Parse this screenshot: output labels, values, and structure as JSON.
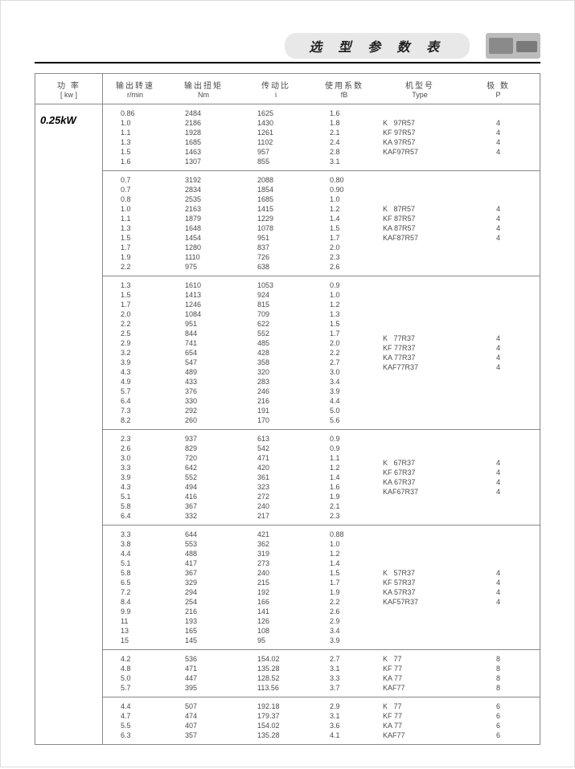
{
  "title": "选 型 参 数 表",
  "headers": {
    "power_top": "功 率",
    "power_bot": "[ kw ]",
    "rmin_top": "输出转速",
    "rmin_bot": "r/min",
    "nm_top": "输出扭矩",
    "nm_bot": "Nm",
    "i_top": "传动比",
    "i_bot": "i",
    "fb_top": "使用系数",
    "fb_bot": "fB",
    "type_top": "机型号",
    "type_bot": "Type",
    "p_top": "极 数",
    "p_bot": "P"
  },
  "power_label": "0.25kW",
  "groups": [
    {
      "rows": [
        [
          "0.86",
          "2484",
          "1625",
          "1.6"
        ],
        [
          "1.0",
          "2186",
          "1430",
          "1.8"
        ],
        [
          "1.1",
          "1928",
          "1261",
          "2.1"
        ],
        [
          "1.3",
          "1685",
          "1102",
          "2.4"
        ],
        [
          "1.5",
          "1463",
          "957",
          "2.8"
        ],
        [
          "1.6",
          "1307",
          "855",
          "3.1"
        ]
      ],
      "types": [
        "K   97R57",
        "KF 97R57",
        "KA 97R57",
        "KAF97R57"
      ],
      "poles": [
        "4",
        "4",
        "4",
        "4"
      ]
    },
    {
      "rows": [
        [
          "0.7",
          "3192",
          "2088",
          "0.80"
        ],
        [
          "0.7",
          "2834",
          "1854",
          "0.90"
        ],
        [
          "0.8",
          "2535",
          "1685",
          "1.0"
        ],
        [
          "1.0",
          "2163",
          "1415",
          "1.2"
        ],
        [
          "1.1",
          "1879",
          "1229",
          "1.4"
        ],
        [
          "1.3",
          "1648",
          "1078",
          "1.5"
        ],
        [
          "1.5",
          "1454",
          "951",
          "1.7"
        ],
        [
          "1.7",
          "1280",
          "837",
          "2.0"
        ],
        [
          "1.9",
          "1110",
          "726",
          "2.3"
        ],
        [
          "2.2",
          "975",
          "638",
          "2.6"
        ]
      ],
      "types": [
        "K   87R57",
        "KF 87R57",
        "KA 87R57",
        "KAF87R57"
      ],
      "poles": [
        "4",
        "4",
        "4",
        "4"
      ]
    },
    {
      "rows": [
        [
          "1.3",
          "1610",
          "1053",
          "0.9"
        ],
        [
          "1.5",
          "1413",
          "924",
          "1.0"
        ],
        [
          "1.7",
          "1246",
          "815",
          "1.2"
        ],
        [
          "2.0",
          "1084",
          "709",
          "1.3"
        ],
        [
          "2.2",
          "951",
          "622",
          "1.5"
        ],
        [
          "2.5",
          "844",
          "552",
          "1.7"
        ],
        [
          "2.9",
          "741",
          "485",
          "2.0"
        ],
        [
          "3.2",
          "654",
          "428",
          "2.2"
        ],
        [
          "3.9",
          "547",
          "358",
          "2.7"
        ],
        [
          "4.3",
          "489",
          "320",
          "3.0"
        ],
        [
          "4.9",
          "433",
          "283",
          "3.4"
        ],
        [
          "5.7",
          "376",
          "246",
          "3.9"
        ],
        [
          "6.4",
          "330",
          "216",
          "4.4"
        ],
        [
          "7.3",
          "292",
          "191",
          "5.0"
        ],
        [
          "8.2",
          "260",
          "170",
          "5.6"
        ]
      ],
      "types": [
        "K   77R37",
        "KF 77R37",
        "KA 77R37",
        "KAF77R37"
      ],
      "poles": [
        "4",
        "4",
        "4",
        "4"
      ]
    },
    {
      "rows": [
        [
          "2.3",
          "937",
          "613",
          "0.9"
        ],
        [
          "2.6",
          "829",
          "542",
          "0.9"
        ],
        [
          "3.0",
          "720",
          "471",
          "1.1"
        ],
        [
          "3.3",
          "642",
          "420",
          "1.2"
        ],
        [
          "3.9",
          "552",
          "361",
          "1.4"
        ],
        [
          "4.3",
          "494",
          "323",
          "1.6"
        ],
        [
          "5.1",
          "416",
          "272",
          "1.9"
        ],
        [
          "5.8",
          "367",
          "240",
          "2.1"
        ],
        [
          "6.4",
          "332",
          "217",
          "2.3"
        ]
      ],
      "types": [
        "K   67R37",
        "KF 67R37",
        "KA 67R37",
        "KAF67R37"
      ],
      "poles": [
        "4",
        "4",
        "4",
        "4"
      ]
    },
    {
      "rows": [
        [
          "3.3",
          "644",
          "421",
          "0.88"
        ],
        [
          "3.8",
          "553",
          "362",
          "1.0"
        ],
        [
          "4.4",
          "488",
          "319",
          "1.2"
        ],
        [
          "5.1",
          "417",
          "273",
          "1.4"
        ],
        [
          "5.8",
          "367",
          "240",
          "1.5"
        ],
        [
          "6.5",
          "329",
          "215",
          "1.7"
        ],
        [
          "7.2",
          "294",
          "192",
          "1.9"
        ],
        [
          "8.4",
          "254",
          "166",
          "2.2"
        ],
        [
          "9.9",
          "216",
          "141",
          "2.6"
        ],
        [
          "11",
          "193",
          "126",
          "2.9"
        ],
        [
          "13",
          "165",
          "108",
          "3.4"
        ],
        [
          "15",
          "145",
          "95",
          "3.9"
        ]
      ],
      "types": [
        "K   57R37",
        "KF 57R37",
        "KA 57R37",
        "KAF57R37"
      ],
      "poles": [
        "4",
        "4",
        "4",
        "4"
      ]
    },
    {
      "rows": [
        [
          "4.2",
          "536",
          "154.02",
          "2.7"
        ],
        [
          "4.8",
          "471",
          "135.28",
          "3.1"
        ],
        [
          "5.0",
          "447",
          "128.52",
          "3.3"
        ],
        [
          "5.7",
          "395",
          "113.56",
          "3.7"
        ]
      ],
      "types": [
        "K   77",
        "KF 77",
        "KA 77",
        "KAF77"
      ],
      "poles": [
        "8",
        "8",
        "8",
        "8"
      ]
    },
    {
      "rows": [
        [
          "4.4",
          "507",
          "192.18",
          "2.9"
        ],
        [
          "4.7",
          "474",
          "179.37",
          "3.1"
        ],
        [
          "5.5",
          "407",
          "154.02",
          "3.6"
        ],
        [
          "6.3",
          "357",
          "135.28",
          "4.1"
        ]
      ],
      "types": [
        "K   77",
        "KF 77",
        "KA 77",
        "KAF77"
      ],
      "poles": [
        "6",
        "6",
        "6",
        "6"
      ]
    }
  ],
  "colors": {
    "border": "#888888",
    "text": "#4a4a4a",
    "header_bg": "#e8e8e8"
  }
}
